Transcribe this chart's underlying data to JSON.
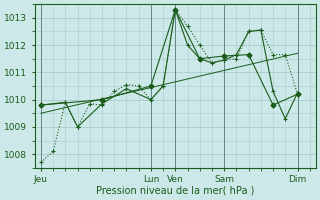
{
  "background_color": "#cce8e8",
  "grid_color": "#aacccc",
  "line_color": "#1a5c1a",
  "xlabel": "Pression niveau de la mer( hPa )",
  "ylim": [
    1007.5,
    1013.5
  ],
  "yticks": [
    1008,
    1009,
    1010,
    1011,
    1012,
    1013
  ],
  "xtick_labels": [
    "Jeu",
    "Lun",
    "Ven",
    "Sam",
    "Dim"
  ],
  "xtick_positions": [
    0,
    9,
    11,
    15,
    21
  ],
  "xlim": [
    -0.5,
    22.5
  ],
  "total_points": 22,
  "series1_x": [
    0,
    1,
    2,
    3,
    4,
    5,
    6,
    7,
    8,
    9,
    10,
    11,
    12,
    13,
    14,
    15,
    16,
    17,
    18,
    19,
    20,
    21
  ],
  "series1_y": [
    1007.7,
    1008.1,
    1009.9,
    1009.0,
    1009.85,
    1009.8,
    1010.3,
    1010.55,
    1010.5,
    1010.0,
    1010.5,
    1013.3,
    1012.7,
    1012.0,
    1011.35,
    1011.45,
    1011.5,
    1012.5,
    1012.55,
    1011.65,
    1011.65,
    1010.2
  ],
  "series1_style": "dotted",
  "series1_marker": "+",
  "series2_x": [
    0,
    2,
    3,
    5,
    7,
    9,
    10,
    11,
    12,
    13,
    14,
    15,
    16,
    17,
    18,
    19,
    20,
    21
  ],
  "series2_y": [
    1009.8,
    1009.9,
    1009.0,
    1009.85,
    1010.4,
    1010.0,
    1010.5,
    1013.3,
    1012.0,
    1011.5,
    1011.35,
    1011.45,
    1011.65,
    1012.5,
    1012.55,
    1010.3,
    1009.3,
    1010.25
  ],
  "series2_style": "solid",
  "series2_marker": "+",
  "series3_x": [
    0,
    5,
    9,
    11,
    13,
    15,
    17,
    19,
    21
  ],
  "series3_y": [
    1009.8,
    1010.0,
    1010.5,
    1013.3,
    1011.5,
    1011.6,
    1011.65,
    1009.8,
    1010.2
  ],
  "series3_style": "solid",
  "series3_marker": "D",
  "series4_x": [
    0,
    21
  ],
  "series4_y": [
    1009.5,
    1011.7
  ],
  "series4_style": "solid"
}
